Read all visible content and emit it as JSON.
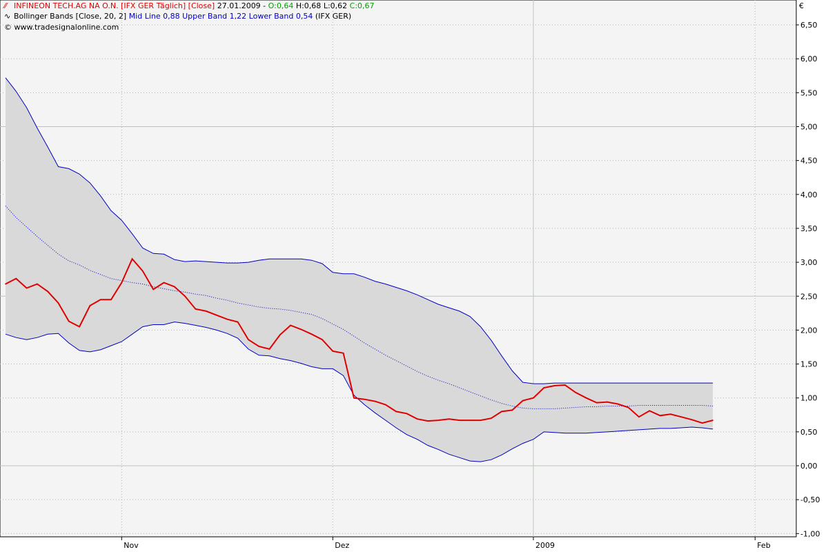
{
  "legend": {
    "line1": {
      "name": "INFINEON TECH.AG NA O.N. [IFX GER  Täglich] [Close]",
      "date": "27.01.2009 -",
      "open": "O:0,64",
      "high": "H:0,68",
      "low": "L:0,62",
      "close": "C:0,67"
    },
    "line2": {
      "indicator": "Bollinger Bands [Close, 20, 2]",
      "values": "Mid Line 0,88 Upper Band 1,22 Lower Band 0,54",
      "suffix": "(IFX GER)"
    },
    "line3": "© www.tradesignalonline.com"
  },
  "currency": "€",
  "colors": {
    "price": "#e00000",
    "band": "#0000c0",
    "band_fill": "#d9d9d9",
    "plot_bg": "#f4f4f4",
    "grid_major": "#b8c8b8"
  },
  "chart_data": {
    "type": "line",
    "ylim": [
      -1.0,
      6.6
    ],
    "y_ticks": [
      "6,50",
      "6,00",
      "5,50",
      "5,00",
      "4,50",
      "4,00",
      "3,50",
      "3,00",
      "2,50",
      "2,00",
      "1,50",
      "1,00",
      "0,50",
      "0,00",
      "-0,50",
      "-1,00"
    ],
    "x_labels": [
      "Nov",
      "Dez",
      "2009",
      "Feb"
    ],
    "n_points": 68,
    "x_label_index": [
      11,
      31,
      50,
      71
    ],
    "series": [
      {
        "name": "INFINEON TECH.AG NA O.N.",
        "values": [
          2.68,
          2.76,
          2.62,
          2.68,
          2.57,
          2.4,
          2.13,
          2.05,
          2.36,
          2.45,
          2.45,
          2.7,
          3.05,
          2.87,
          2.6,
          2.7,
          2.64,
          2.5,
          2.31,
          2.28,
          2.22,
          2.16,
          2.12,
          1.86,
          1.76,
          1.72,
          1.93,
          2.07,
          2.01,
          1.94,
          1.86,
          1.69,
          1.66,
          1.0,
          0.98,
          0.95,
          0.9,
          0.8,
          0.77,
          0.69,
          0.66,
          0.67,
          0.69,
          0.67,
          0.67,
          0.67,
          0.7,
          0.8,
          0.82,
          0.96,
          1.0,
          1.15,
          1.18,
          1.19,
          1.08,
          1.0,
          0.93,
          0.94,
          0.91,
          0.86,
          0.72,
          0.81,
          0.74,
          0.76,
          0.72,
          0.68,
          0.63,
          0.67
        ]
      },
      {
        "name": "Upper Band",
        "values": [
          5.72,
          5.52,
          5.28,
          4.98,
          4.7,
          4.41,
          4.38,
          4.3,
          4.17,
          3.98,
          3.76,
          3.62,
          3.42,
          3.21,
          3.13,
          3.12,
          3.04,
          3.01,
          3.02,
          3.01,
          3.0,
          2.99,
          2.99,
          3.0,
          3.03,
          3.05,
          3.05,
          3.05,
          3.05,
          3.03,
          2.98,
          2.85,
          2.83,
          2.83,
          2.78,
          2.72,
          2.68,
          2.63,
          2.58,
          2.52,
          2.45,
          2.38,
          2.33,
          2.28,
          2.2,
          2.05,
          1.85,
          1.62,
          1.4,
          1.23,
          1.21,
          1.21,
          1.22,
          1.22,
          1.22,
          1.22,
          1.22,
          1.22,
          1.22,
          1.22,
          1.22,
          1.22,
          1.22,
          1.22,
          1.22,
          1.22,
          1.22,
          1.22
        ]
      },
      {
        "name": "Mid Line",
        "values": [
          3.83,
          3.66,
          3.52,
          3.38,
          3.25,
          3.12,
          3.02,
          2.96,
          2.88,
          2.82,
          2.76,
          2.73,
          2.7,
          2.68,
          2.64,
          2.61,
          2.58,
          2.56,
          2.53,
          2.51,
          2.47,
          2.44,
          2.4,
          2.37,
          2.34,
          2.32,
          2.31,
          2.29,
          2.26,
          2.23,
          2.17,
          2.09,
          2.01,
          1.91,
          1.81,
          1.72,
          1.63,
          1.55,
          1.47,
          1.39,
          1.32,
          1.26,
          1.21,
          1.15,
          1.09,
          1.03,
          0.97,
          0.92,
          0.88,
          0.85,
          0.84,
          0.84,
          0.84,
          0.85,
          0.86,
          0.87,
          0.87,
          0.88,
          0.88,
          0.88,
          0.89,
          0.89,
          0.89,
          0.89,
          0.89,
          0.89,
          0.89,
          0.88
        ]
      },
      {
        "name": "Lower Band",
        "values": [
          1.94,
          1.89,
          1.86,
          1.89,
          1.94,
          1.95,
          1.81,
          1.7,
          1.68,
          1.71,
          1.77,
          1.83,
          1.94,
          2.05,
          2.08,
          2.08,
          2.12,
          2.1,
          2.07,
          2.04,
          2.0,
          1.95,
          1.88,
          1.72,
          1.63,
          1.62,
          1.58,
          1.55,
          1.51,
          1.46,
          1.43,
          1.43,
          1.33,
          1.04,
          0.9,
          0.78,
          0.67,
          0.56,
          0.46,
          0.39,
          0.3,
          0.24,
          0.17,
          0.12,
          0.07,
          0.06,
          0.09,
          0.16,
          0.25,
          0.33,
          0.39,
          0.5,
          0.49,
          0.48,
          0.48,
          0.48,
          0.49,
          0.5,
          0.51,
          0.52,
          0.53,
          0.54,
          0.55,
          0.55,
          0.56,
          0.57,
          0.56,
          0.54
        ]
      }
    ],
    "grid": true
  }
}
